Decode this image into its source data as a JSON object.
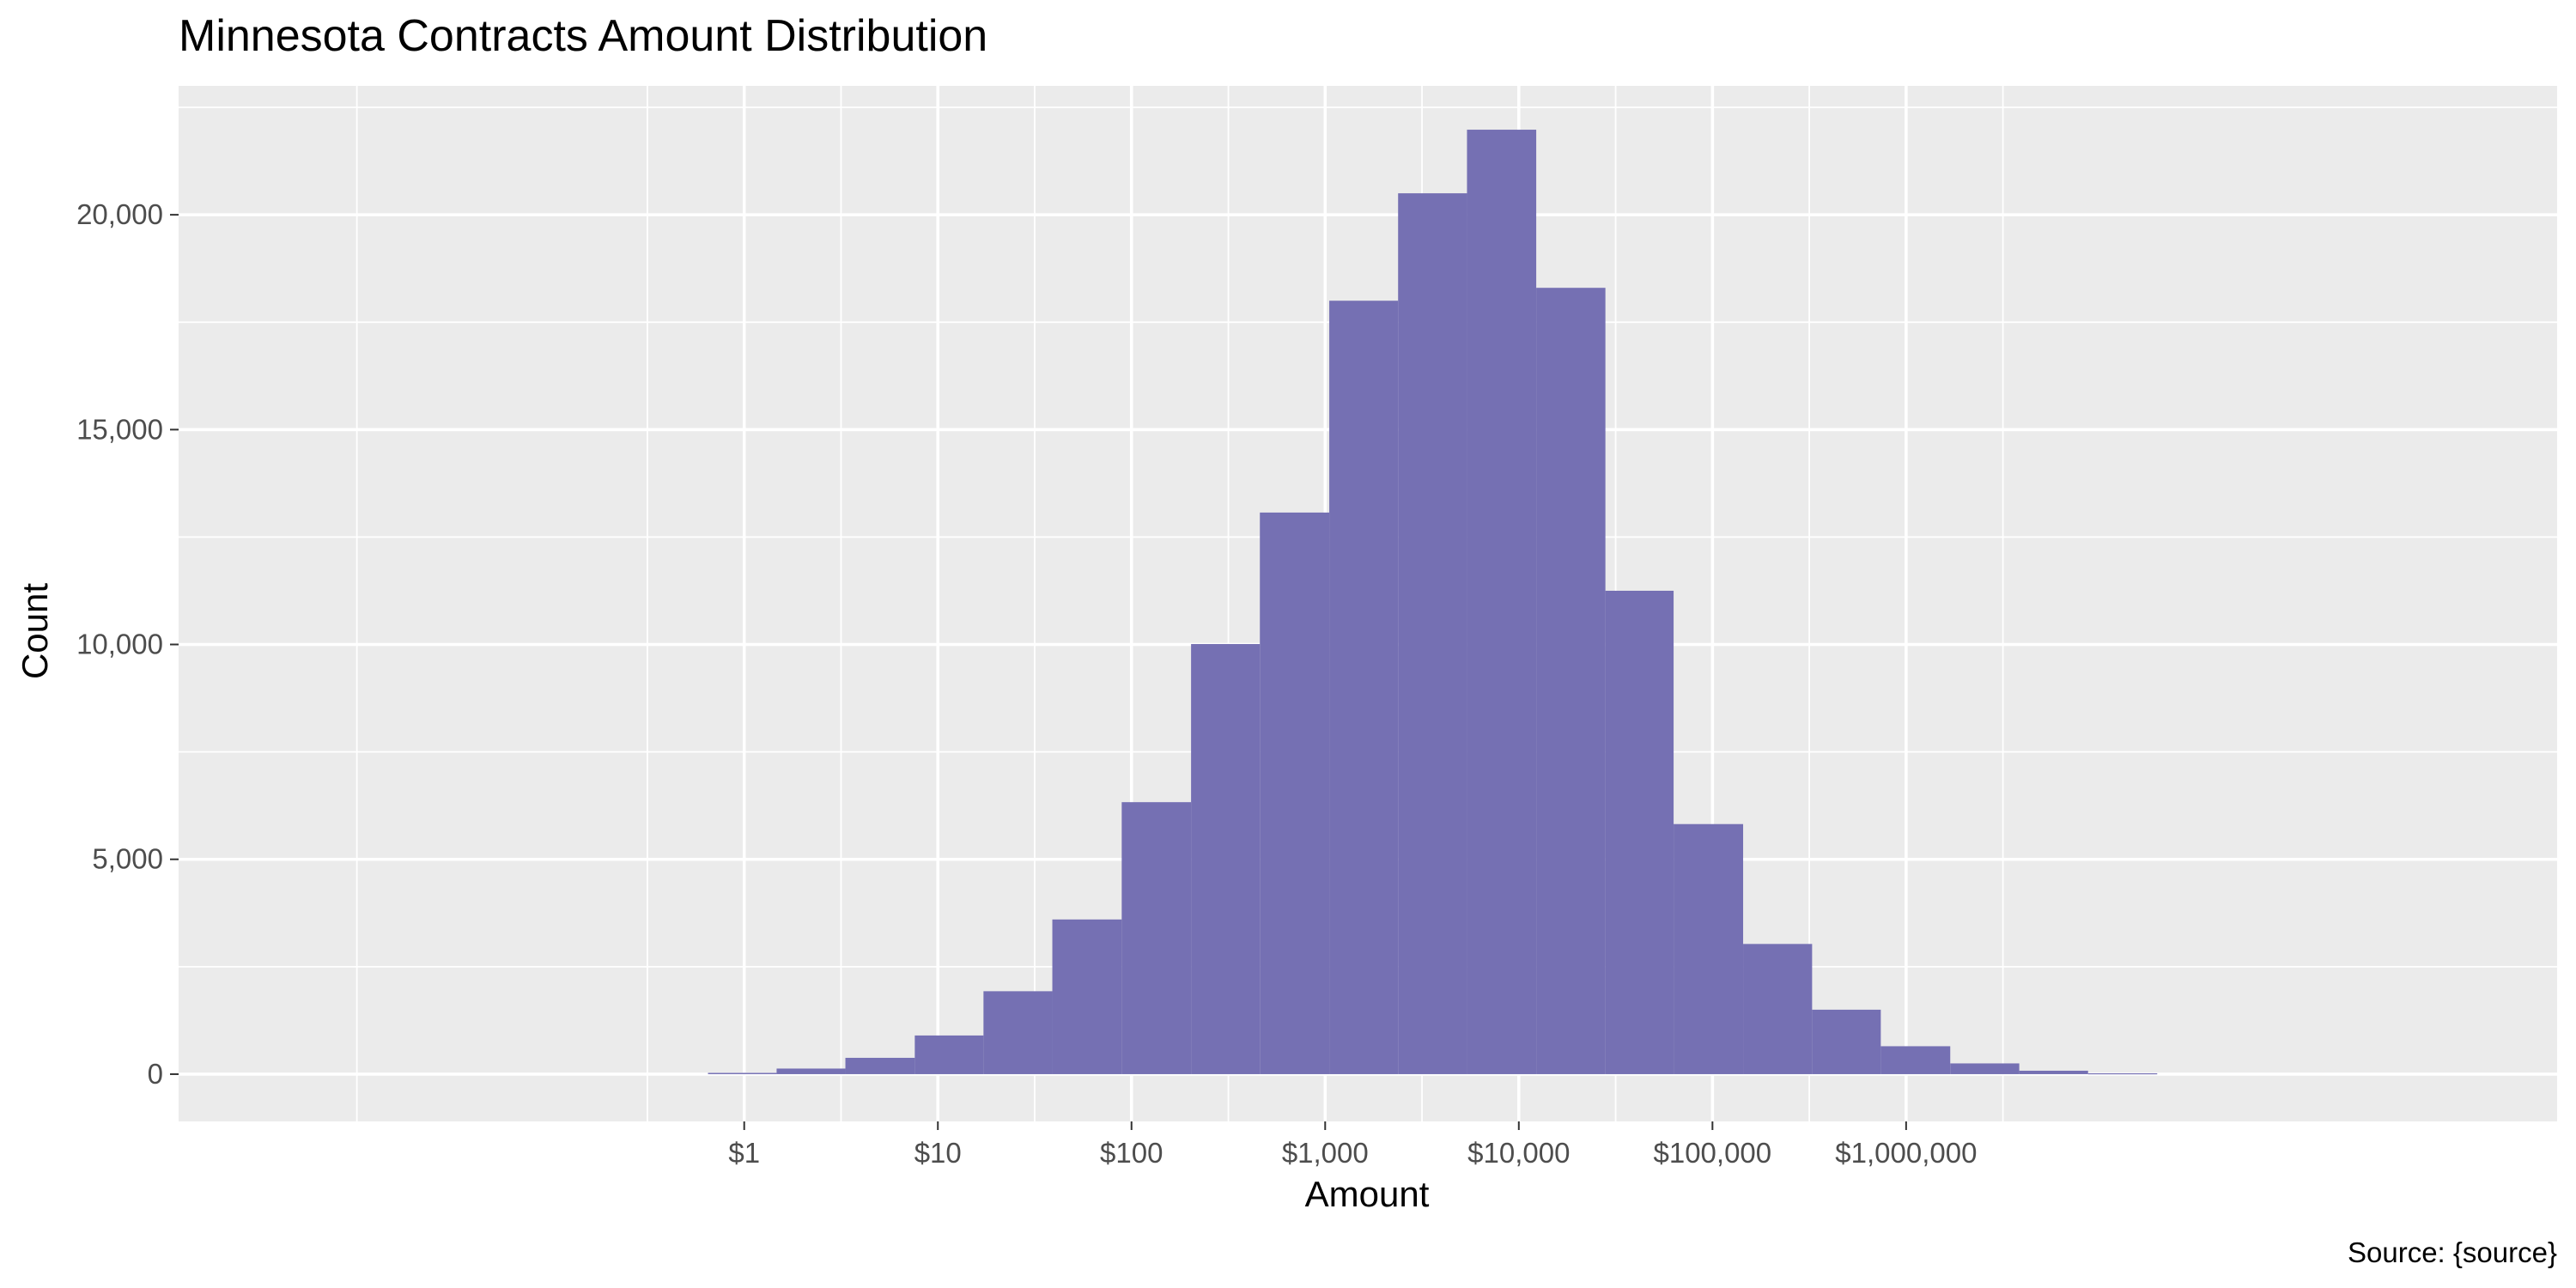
{
  "chart_data": {
    "type": "bar",
    "title": "Minnesota Contracts Amount Distribution",
    "xlabel": "Amount",
    "ylabel": "Count",
    "caption": "Source: {source}",
    "x_scale": "log10",
    "xlim": [
      0.0012,
      2300000000
    ],
    "ylim": [
      -1100,
      23000
    ],
    "x_ticks": [
      {
        "value": 1,
        "label": "$1"
      },
      {
        "value": 10,
        "label": "$10"
      },
      {
        "value": 100,
        "label": "$100"
      },
      {
        "value": 1000,
        "label": "$1,000"
      },
      {
        "value": 10000,
        "label": "$10,000"
      },
      {
        "value": 100000,
        "label": "$100,000"
      },
      {
        "value": 1000000,
        "label": "$1,000,000"
      }
    ],
    "y_ticks": [
      {
        "value": 0,
        "label": "0"
      },
      {
        "value": 5000,
        "label": "5,000"
      },
      {
        "value": 10000,
        "label": "10,000"
      },
      {
        "value": 15000,
        "label": "15,000"
      },
      {
        "value": 20000,
        "label": "20,000"
      }
    ],
    "bins": [
      {
        "from": 0.65,
        "to": 1.47,
        "count": 30
      },
      {
        "from": 1.47,
        "to": 3.33,
        "count": 130
      },
      {
        "from": 3.33,
        "to": 7.6,
        "count": 380
      },
      {
        "from": 7.6,
        "to": 17.2,
        "count": 900
      },
      {
        "from": 17.2,
        "to": 39,
        "count": 1930
      },
      {
        "from": 39,
        "to": 89,
        "count": 3600
      },
      {
        "from": 89,
        "to": 203,
        "count": 6330
      },
      {
        "from": 203,
        "to": 460,
        "count": 10010
      },
      {
        "from": 460,
        "to": 1050,
        "count": 13070
      },
      {
        "from": 1050,
        "to": 2380,
        "count": 18000
      },
      {
        "from": 2380,
        "to": 5400,
        "count": 20500
      },
      {
        "from": 5400,
        "to": 12300,
        "count": 21980
      },
      {
        "from": 12300,
        "to": 28000,
        "count": 18300
      },
      {
        "from": 28000,
        "to": 63000,
        "count": 11250
      },
      {
        "from": 63000,
        "to": 144000,
        "count": 5820
      },
      {
        "from": 144000,
        "to": 327000,
        "count": 3030
      },
      {
        "from": 327000,
        "to": 740000,
        "count": 1500
      },
      {
        "from": 740000,
        "to": 1690000,
        "count": 650
      },
      {
        "from": 1690000,
        "to": 3840000,
        "count": 250
      },
      {
        "from": 3840000,
        "to": 8700000,
        "count": 80
      },
      {
        "from": 8700000,
        "to": 19800000,
        "count": 20
      }
    ],
    "grid": true,
    "colors": {
      "bar": "#7570b3",
      "panel_background": "#ebebeb",
      "grid": "#ffffff",
      "tick_text": "#4d4d4d",
      "tick_mark": "#333333"
    }
  }
}
